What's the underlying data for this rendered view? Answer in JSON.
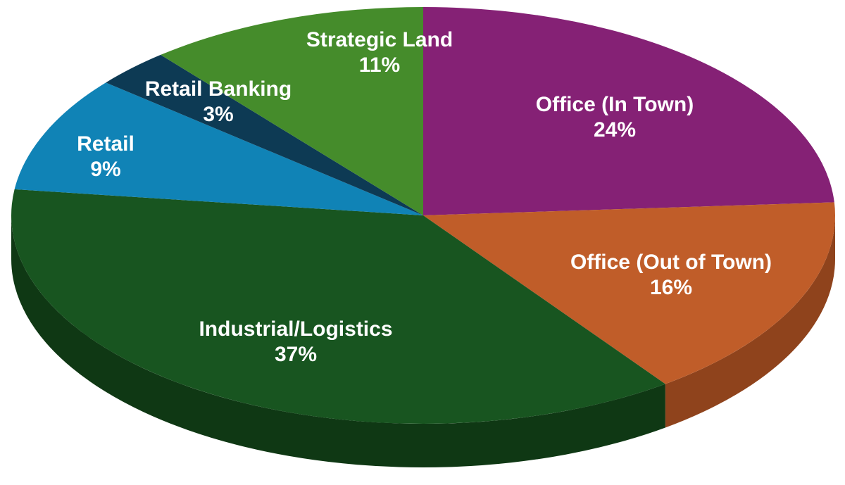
{
  "chart_data": {
    "type": "pie",
    "title": "",
    "slices": [
      {
        "label": "Office (In Town)",
        "value": 24,
        "value_label": "24%",
        "color": "#852175",
        "side_color": "#5e1653"
      },
      {
        "label": "Office (Out of Town)",
        "value": 16,
        "value_label": "16%",
        "color": "#c05d29",
        "side_color": "#8f431c"
      },
      {
        "label": "Industrial/Logistics",
        "value": 37,
        "value_label": "37%",
        "color": "#185520",
        "side_color": "#0f3814"
      },
      {
        "label": "Retail",
        "value": 9,
        "value_label": "9%",
        "color": "#1083b6",
        "side_color": "#0a5a7e"
      },
      {
        "label": "Retail Banking",
        "value": 3,
        "value_label": "3%",
        "color": "#0d3a54",
        "side_color": "#082637"
      },
      {
        "label": "Strategic Land",
        "value": 11,
        "value_label": "11%",
        "color": "#458c2b",
        "side_color": "#2f621d"
      }
    ],
    "style": "3d-tilted-pie"
  }
}
